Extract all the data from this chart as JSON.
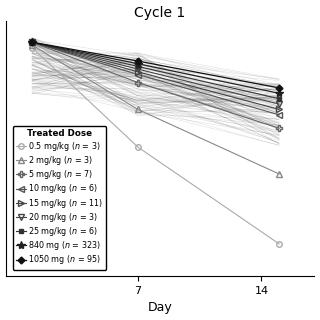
{
  "title": "Cycle 1",
  "xlabel": "Day",
  "ylabel": "",
  "xlim": [
    -0.5,
    17
  ],
  "xticks": [
    7,
    14
  ],
  "legend_title": "Treated Dose",
  "legend_fontsize": 5.8,
  "title_fontsize": 10,
  "xlabel_fontsize": 9,
  "background_color": "#ffffff",
  "doses": [
    {
      "label": "0.5 mg/kg (n = 3)",
      "marker": "o",
      "fillstyle": "none",
      "color": "#aaaaaa",
      "lw": 0.8,
      "x": [
        1,
        7,
        15
      ],
      "y": [
        95,
        58,
        22
      ]
    },
    {
      "label": "2 mg/kg (n = 3)",
      "marker": "^",
      "fillstyle": "none",
      "color": "#888888",
      "lw": 0.8,
      "x": [
        1,
        7,
        15
      ],
      "y": [
        96,
        72,
        48
      ]
    },
    {
      "label": "5 mg/kg (n = 7)",
      "marker": "P",
      "fillstyle": "none",
      "color": "#666666",
      "lw": 0.8,
      "x": [
        1,
        7,
        15
      ],
      "y": [
        97,
        82,
        65
      ]
    },
    {
      "label": "10 mg/kg (n = 6)",
      "marker": "<",
      "fillstyle": "none",
      "color": "#555555",
      "lw": 0.8,
      "x": [
        1,
        7,
        15
      ],
      "y": [
        97,
        85,
        70
      ]
    },
    {
      "label": "15 mg/kg (n = 11)",
      "marker": ">",
      "fillstyle": "none",
      "color": "#444444",
      "lw": 0.8,
      "x": [
        1,
        7,
        15
      ],
      "y": [
        97,
        86,
        72
      ]
    },
    {
      "label": "20 mg/kg (n = 3)",
      "marker": "v",
      "fillstyle": "none",
      "color": "#444444",
      "lw": 0.8,
      "x": [
        1,
        7,
        15
      ],
      "y": [
        97,
        87,
        74
      ]
    },
    {
      "label": "25 mg/kg (n = 6)",
      "marker": "s",
      "fillstyle": "full",
      "color": "#333333",
      "lw": 0.8,
      "x": [
        1,
        7,
        15
      ],
      "y": [
        97,
        88,
        76
      ]
    },
    {
      "label": "840 mg (n = 323)",
      "marker": "*",
      "fillstyle": "full",
      "color": "#222222",
      "lw": 0.9,
      "x": [
        1,
        7,
        15
      ],
      "y": [
        97,
        89,
        78
      ]
    },
    {
      "label": "1050 mg (n = 95)",
      "marker": "D",
      "fillstyle": "full",
      "color": "#111111",
      "lw": 0.9,
      "x": [
        1,
        7,
        15
      ],
      "y": [
        97,
        90,
        80
      ]
    }
  ],
  "n_bg_lines_840": 80,
  "n_bg_lines_1050": 25,
  "ylim": [
    10,
    105
  ]
}
